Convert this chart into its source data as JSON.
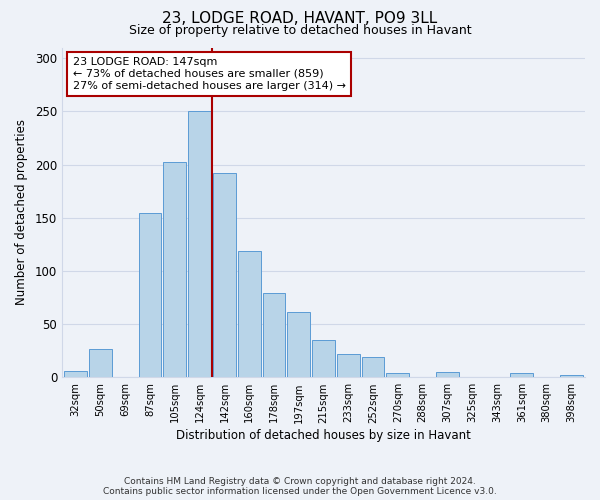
{
  "title1": "23, LODGE ROAD, HAVANT, PO9 3LL",
  "title2": "Size of property relative to detached houses in Havant",
  "xlabel": "Distribution of detached houses by size in Havant",
  "ylabel": "Number of detached properties",
  "categories": [
    "32sqm",
    "50sqm",
    "69sqm",
    "87sqm",
    "105sqm",
    "124sqm",
    "142sqm",
    "160sqm",
    "178sqm",
    "197sqm",
    "215sqm",
    "233sqm",
    "252sqm",
    "270sqm",
    "288sqm",
    "307sqm",
    "325sqm",
    "343sqm",
    "361sqm",
    "380sqm",
    "398sqm"
  ],
  "values": [
    6,
    27,
    0,
    154,
    202,
    250,
    192,
    119,
    79,
    61,
    35,
    22,
    19,
    4,
    0,
    5,
    0,
    0,
    4,
    0,
    2
  ],
  "bar_color": "#b8d4e8",
  "bar_edge_color": "#5b9bd5",
  "marker_line_color": "#aa0000",
  "annotation_box_edge": "#aa0000",
  "marker_label": "23 LODGE ROAD: 147sqm",
  "annotation_line1": "← 73% of detached houses are smaller (859)",
  "annotation_line2": "27% of semi-detached houses are larger (314) →",
  "footer1": "Contains HM Land Registry data © Crown copyright and database right 2024.",
  "footer2": "Contains public sector information licensed under the Open Government Licence v3.0.",
  "background_color": "#eef2f8",
  "ylim": [
    0,
    310
  ],
  "yticks": [
    0,
    50,
    100,
    150,
    200,
    250,
    300
  ],
  "grid_color": "#d0d8e8"
}
